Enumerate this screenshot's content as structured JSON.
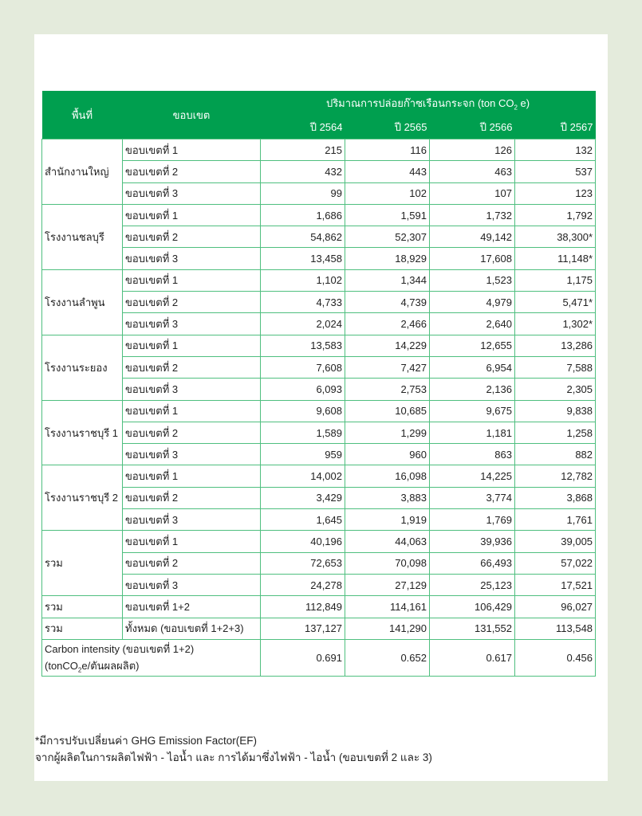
{
  "table": {
    "header": {
      "area": "พื้นที่",
      "scope": "ขอบเขต",
      "emission_title_pre": "ปริมาณการปล่อยก๊าซเรือนกระจก (ton CO",
      "emission_title_sub": "2",
      "emission_title_post": " e)",
      "years": [
        "ปี 2564",
        "ปี 2565",
        "ปี 2566",
        "ปี 2567"
      ]
    },
    "groups": [
      {
        "area": "สำนักงานใหญ่",
        "rows": [
          {
            "scope": "ขอบเขตที่ 1",
            "values": [
              "215",
              "116",
              "126",
              "132"
            ]
          },
          {
            "scope": "ขอบเขตที่ 2",
            "values": [
              "432",
              "443",
              "463",
              "537"
            ]
          },
          {
            "scope": "ขอบเขตที่ 3",
            "values": [
              "99",
              "102",
              "107",
              "123"
            ]
          }
        ]
      },
      {
        "area": "โรงงานชลบุรี",
        "rows": [
          {
            "scope": "ขอบเขตที่ 1",
            "values": [
              "1,686",
              "1,591",
              "1,732",
              "1,792"
            ]
          },
          {
            "scope": "ขอบเขตที่ 2",
            "values": [
              "54,862",
              "52,307",
              "49,142",
              "38,300*"
            ]
          },
          {
            "scope": "ขอบเขตที่ 3",
            "values": [
              "13,458",
              "18,929",
              "17,608",
              "11,148*"
            ]
          }
        ]
      },
      {
        "area": "โรงงานลำพูน",
        "rows": [
          {
            "scope": "ขอบเขตที่ 1",
            "values": [
              "1,102",
              "1,344",
              "1,523",
              "1,175"
            ]
          },
          {
            "scope": "ขอบเขตที่ 2",
            "values": [
              "4,733",
              "4,739",
              "4,979",
              "5,471*"
            ]
          },
          {
            "scope": "ขอบเขตที่ 3",
            "values": [
              "2,024",
              "2,466",
              "2,640",
              "1,302*"
            ]
          }
        ]
      },
      {
        "area": "โรงงานระยอง",
        "rows": [
          {
            "scope": "ขอบเขตที่ 1",
            "values": [
              "13,583",
              "14,229",
              "12,655",
              "13,286"
            ]
          },
          {
            "scope": "ขอบเขตที่ 2",
            "values": [
              "7,608",
              "7,427",
              "6,954",
              "7,588"
            ]
          },
          {
            "scope": "ขอบเขตที่ 3",
            "values": [
              "6,093",
              "2,753",
              "2,136",
              "2,305"
            ]
          }
        ]
      },
      {
        "area": "โรงงานราชบุรี 1",
        "rows": [
          {
            "scope": "ขอบเขตที่ 1",
            "values": [
              "9,608",
              "10,685",
              "9,675",
              "9,838"
            ]
          },
          {
            "scope": "ขอบเขตที่ 2",
            "values": [
              "1,589",
              "1,299",
              "1,181",
              "1,258"
            ]
          },
          {
            "scope": "ขอบเขตที่ 3",
            "values": [
              "959",
              "960",
              "863",
              "882"
            ]
          }
        ]
      },
      {
        "area": "โรงงานราชบุรี 2",
        "rows": [
          {
            "scope": "ขอบเขตที่ 1",
            "values": [
              "14,002",
              "16,098",
              "14,225",
              "12,782"
            ]
          },
          {
            "scope": "ขอบเขตที่ 2",
            "values": [
              "3,429",
              "3,883",
              "3,774",
              "3,868"
            ]
          },
          {
            "scope": "ขอบเขตที่ 3",
            "values": [
              "1,645",
              "1,919",
              "1,769",
              "1,761"
            ]
          }
        ]
      },
      {
        "area": "รวม",
        "rows": [
          {
            "scope": "ขอบเขตที่ 1",
            "values": [
              "40,196",
              "44,063",
              "39,936",
              "39,005"
            ]
          },
          {
            "scope": "ขอบเขตที่ 2",
            "values": [
              "72,653",
              "70,098",
              "66,493",
              "57,022"
            ]
          },
          {
            "scope": "ขอบเขตที่ 3",
            "values": [
              "24,278",
              "27,129",
              "25,123",
              "17,521"
            ]
          }
        ]
      },
      {
        "area": "รวม",
        "rows": [
          {
            "scope": "ขอบเขตที่ 1+2",
            "values": [
              "112,849",
              "114,161",
              "106,429",
              "96,027"
            ]
          }
        ]
      },
      {
        "area": "รวม",
        "rows": [
          {
            "scope": "ทั้งหมด (ขอบเขตที่ 1+2+3)",
            "values": [
              "137,127",
              "141,290",
              "131,552",
              "113,548"
            ]
          }
        ]
      }
    ],
    "intensity": {
      "label_line1": "Carbon intensity (ขอบเขตที่ 1+2)",
      "label_line2_pre": "(tonCO",
      "label_line2_sub": "2",
      "label_line2_post": "e/ตันผลผลิต)",
      "values": [
        "0.691",
        "0.652",
        "0.617",
        "0.456"
      ]
    }
  },
  "footnote": {
    "line1": "*มีการปรับเปลี่ยนค่า GHG Emission Factor(EF)",
    "line2": "จากผู้ผลิตในการผลิตไฟฟ้า - ไอน้ำ และ การได้มาซึ่งไฟฟ้า - ไอน้ำ (ขอบเขตที่ 2 และ 3)"
  },
  "colors": {
    "header_bg": "#009f4f",
    "border": "#4fbf7f",
    "page_bg": "#e4ebdc"
  }
}
